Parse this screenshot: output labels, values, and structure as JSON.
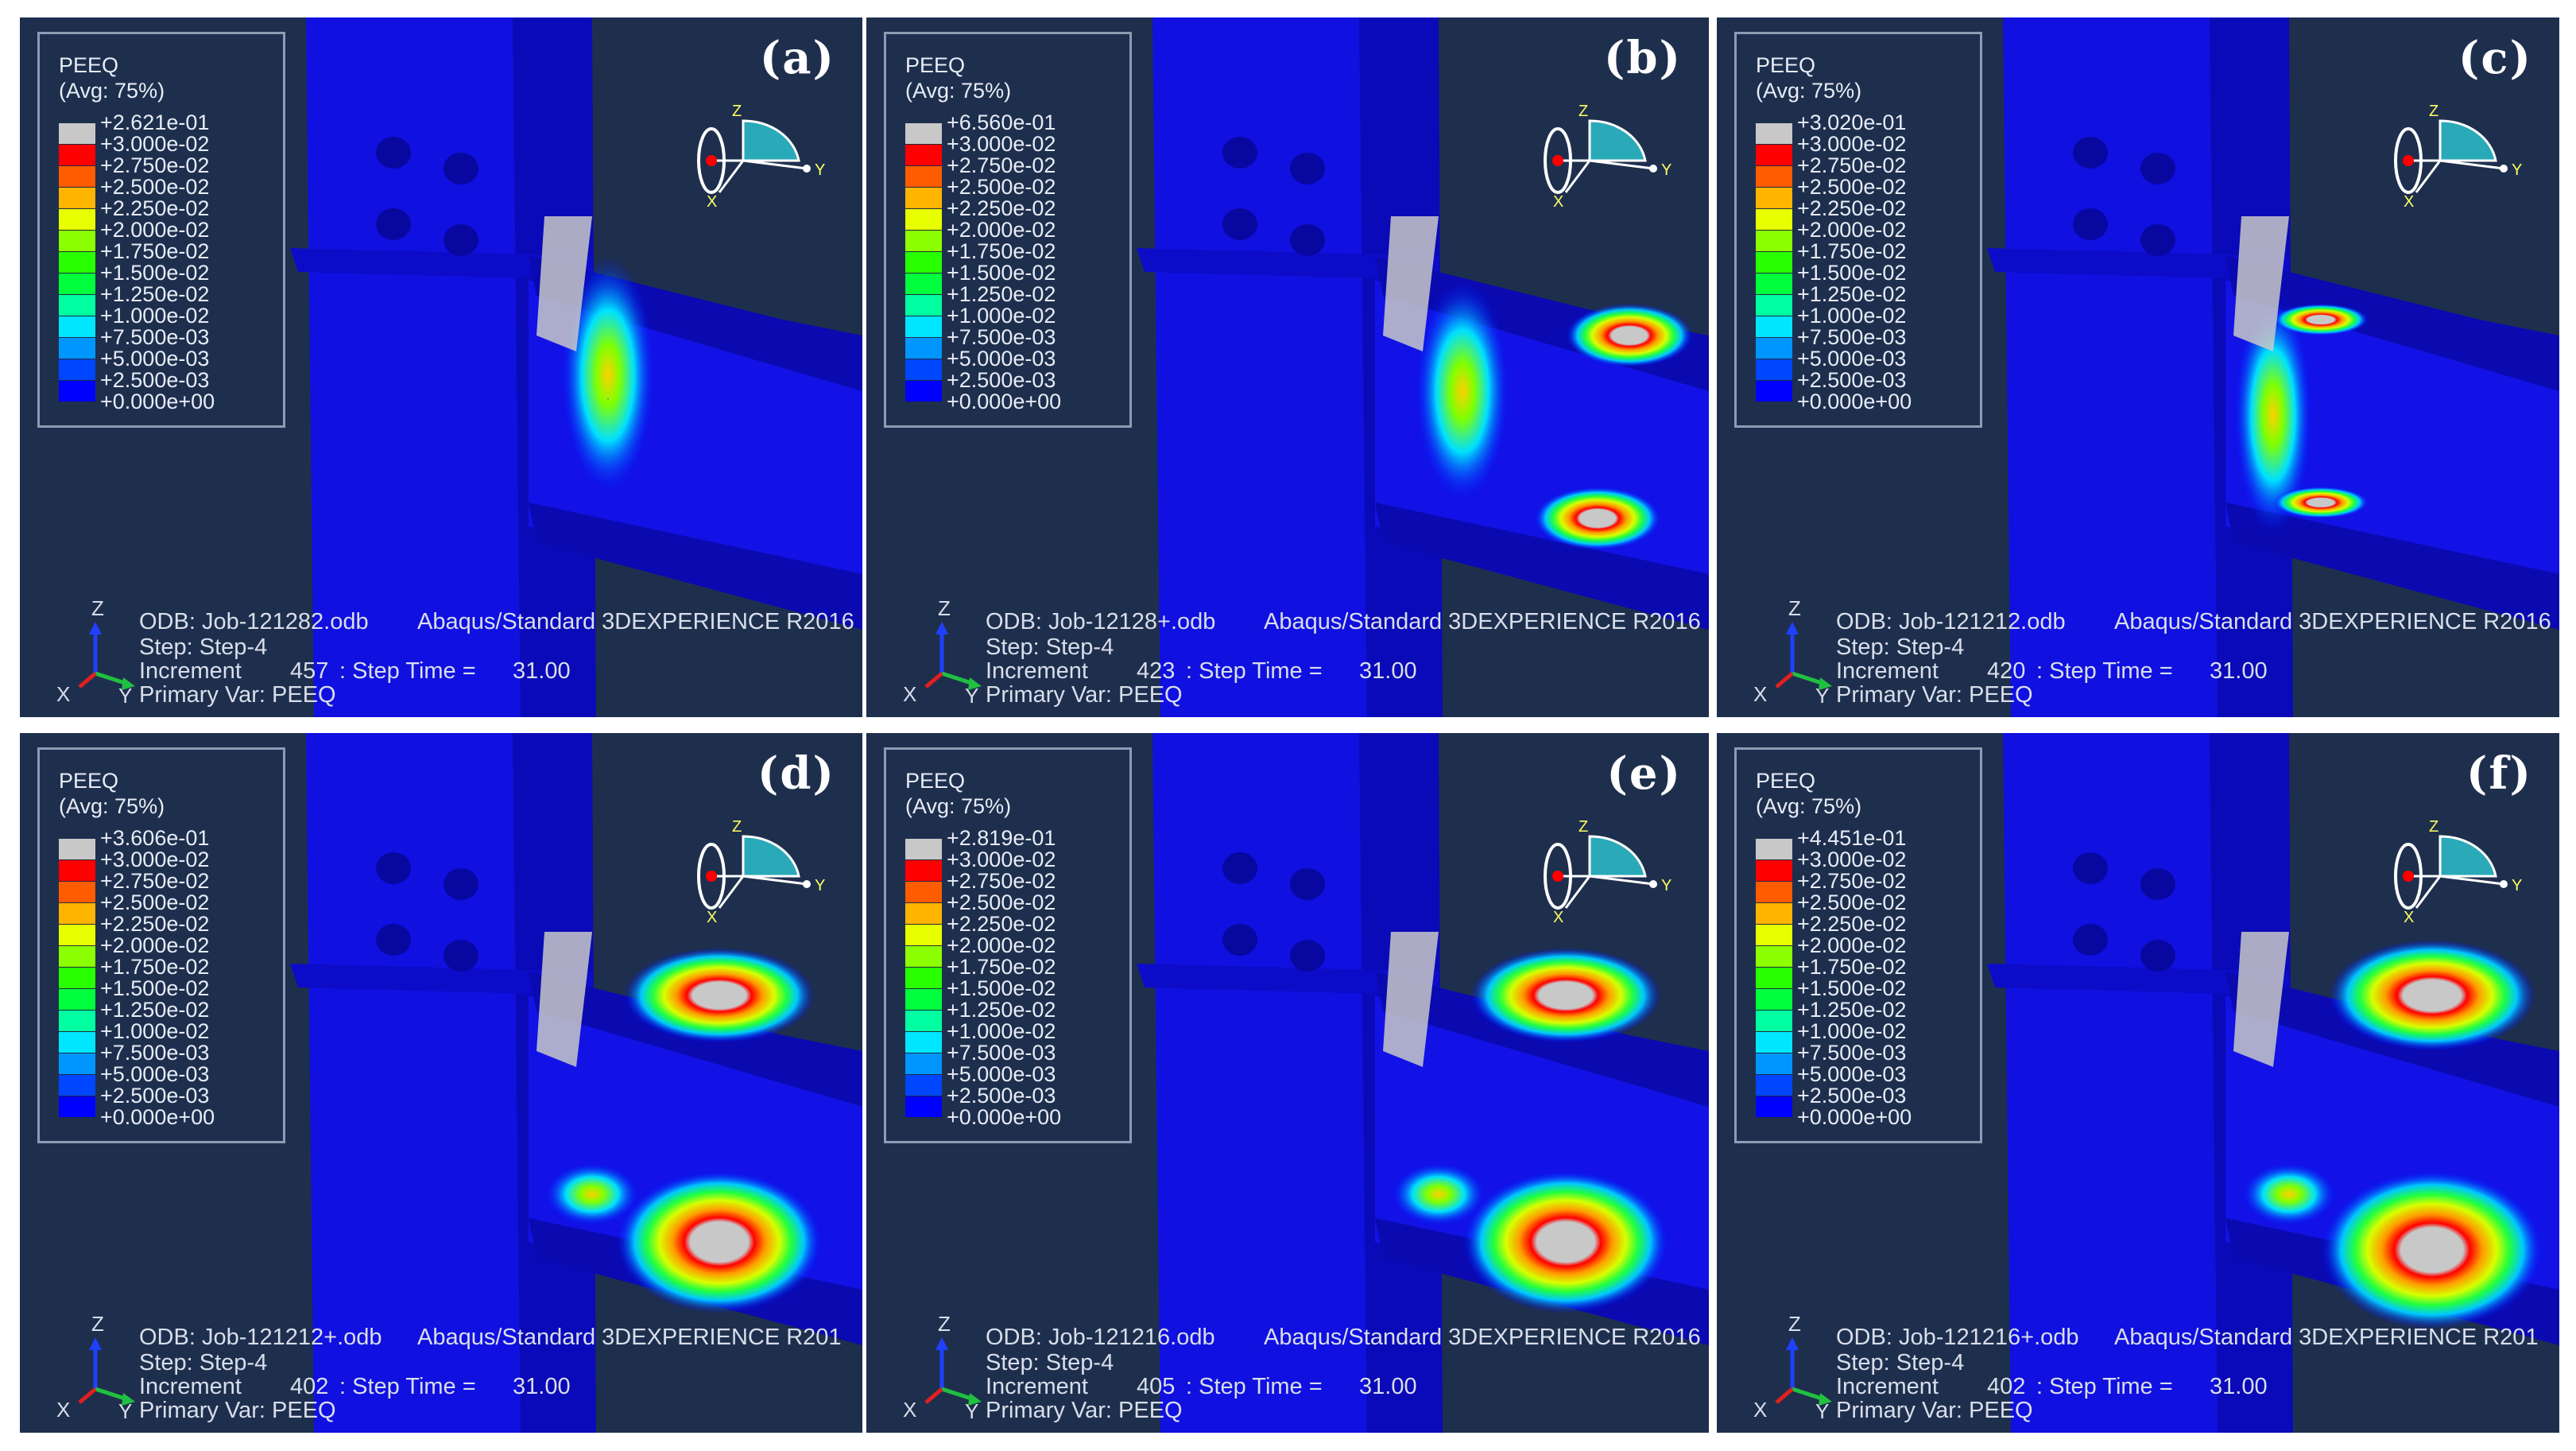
{
  "legend_colors": [
    "#c8c8c8",
    "#ff0000",
    "#ff5c00",
    "#ffb400",
    "#e8ff00",
    "#8cff00",
    "#28ff00",
    "#00ff3c",
    "#00ffa0",
    "#00e6ff",
    "#0096ff",
    "#0046ff",
    "#0000ff"
  ],
  "panels": [
    {
      "tag": "(a)",
      "legend_title": "PEEQ",
      "legend_avg": "(Avg: 75%)",
      "legend_values": [
        "+2.621e-01",
        "+3.000e-02",
        "+2.750e-02",
        "+2.500e-02",
        "+2.250e-02",
        "+2.000e-02",
        "+1.750e-02",
        "+1.500e-02",
        "+1.250e-02",
        "+1.000e-02",
        "+7.500e-03",
        "+5.000e-03",
        "+2.500e-03",
        "+0.000e+00"
      ],
      "odb": "ODB: Job-121282.odb",
      "solver": "Abaqus/Standard 3DEXPERIENCE R2016",
      "step": "Step: Step-4",
      "increment": "Increment",
      "increment_value": "457",
      "step_time": ": Step Time =",
      "step_time_value": "31.00",
      "primary_var": "Primary Var: PEEQ",
      "triad": {
        "z": "Z",
        "x": "X",
        "y": "Y"
      },
      "view_cube": {
        "z": "Z",
        "x": "X",
        "y": "Y"
      }
    },
    {
      "tag": "(b)",
      "legend_title": "PEEQ",
      "legend_avg": "(Avg: 75%)",
      "legend_values": [
        "+6.560e-01",
        "+3.000e-02",
        "+2.750e-02",
        "+2.500e-02",
        "+2.250e-02",
        "+2.000e-02",
        "+1.750e-02",
        "+1.500e-02",
        "+1.250e-02",
        "+1.000e-02",
        "+7.500e-03",
        "+5.000e-03",
        "+2.500e-03",
        "+0.000e+00"
      ],
      "odb": "ODB: Job-12128+.odb",
      "solver": "Abaqus/Standard 3DEXPERIENCE R2016",
      "step": "Step: Step-4",
      "increment": "Increment",
      "increment_value": "423",
      "step_time": ": Step Time =",
      "step_time_value": "31.00",
      "primary_var": "Primary Var: PEEQ",
      "triad": {
        "z": "Z",
        "x": "X",
        "y": "Y"
      },
      "view_cube": {
        "z": "Z",
        "x": "X",
        "y": "Y"
      }
    },
    {
      "tag": "(c)",
      "legend_title": "PEEQ",
      "legend_avg": "(Avg: 75%)",
      "legend_values": [
        "+3.020e-01",
        "+3.000e-02",
        "+2.750e-02",
        "+2.500e-02",
        "+2.250e-02",
        "+2.000e-02",
        "+1.750e-02",
        "+1.500e-02",
        "+1.250e-02",
        "+1.000e-02",
        "+7.500e-03",
        "+5.000e-03",
        "+2.500e-03",
        "+0.000e+00"
      ],
      "odb": "ODB: Job-121212.odb",
      "solver": "Abaqus/Standard 3DEXPERIENCE R2016",
      "step": "Step: Step-4",
      "increment": "Increment",
      "increment_value": "420",
      "step_time": ": Step Time =",
      "step_time_value": "31.00",
      "primary_var": "Primary Var: PEEQ",
      "triad": {
        "z": "Z",
        "x": "X",
        "y": "Y"
      },
      "view_cube": {
        "z": "Z",
        "x": "X",
        "y": "Y"
      }
    },
    {
      "tag": "(d)",
      "legend_title": "PEEQ",
      "legend_avg": "(Avg: 75%)",
      "legend_values": [
        "+3.606e-01",
        "+3.000e-02",
        "+2.750e-02",
        "+2.500e-02",
        "+2.250e-02",
        "+2.000e-02",
        "+1.750e-02",
        "+1.500e-02",
        "+1.250e-02",
        "+1.000e-02",
        "+7.500e-03",
        "+5.000e-03",
        "+2.500e-03",
        "+0.000e+00"
      ],
      "odb": "ODB: Job-121212+.odb",
      "solver": "Abaqus/Standard 3DEXPERIENCE R201",
      "step": "Step: Step-4",
      "increment": "Increment",
      "increment_value": "402",
      "step_time": ": Step Time =",
      "step_time_value": "31.00",
      "primary_var": "Primary Var: PEEQ",
      "triad": {
        "z": "Z",
        "x": "X",
        "y": "Y"
      },
      "view_cube": {
        "z": "Z",
        "x": "X",
        "y": "Y"
      }
    },
    {
      "tag": "(e)",
      "legend_title": "PEEQ",
      "legend_avg": "(Avg: 75%)",
      "legend_values": [
        "+2.819e-01",
        "+3.000e-02",
        "+2.750e-02",
        "+2.500e-02",
        "+2.250e-02",
        "+2.000e-02",
        "+1.750e-02",
        "+1.500e-02",
        "+1.250e-02",
        "+1.000e-02",
        "+7.500e-03",
        "+5.000e-03",
        "+2.500e-03",
        "+0.000e+00"
      ],
      "odb": "ODB: Job-121216.odb",
      "solver": "Abaqus/Standard 3DEXPERIENCE R2016",
      "step": "Step: Step-4",
      "increment": "Increment",
      "increment_value": "405",
      "step_time": ": Step Time =",
      "step_time_value": "31.00",
      "primary_var": "Primary Var: PEEQ",
      "triad": {
        "z": "Z",
        "x": "X",
        "y": "Y"
      },
      "view_cube": {
        "z": "Z",
        "x": "X",
        "y": "Y"
      }
    },
    {
      "tag": "(f)",
      "legend_title": "PEEQ",
      "legend_avg": "(Avg: 75%)",
      "legend_values": [
        "+4.451e-01",
        "+3.000e-02",
        "+2.750e-02",
        "+2.500e-02",
        "+2.250e-02",
        "+2.000e-02",
        "+1.750e-02",
        "+1.500e-02",
        "+1.250e-02",
        "+1.000e-02",
        "+7.500e-03",
        "+5.000e-03",
        "+2.500e-03",
        "+0.000e+00"
      ],
      "odb": "ODB: Job-121216+.odb",
      "solver": "Abaqus/Standard 3DEXPERIENCE R201",
      "step": "Step: Step-4",
      "increment": "Increment",
      "increment_value": "402",
      "step_time": ": Step Time =",
      "step_time_value": "31.00",
      "primary_var": "Primary Var: PEEQ",
      "triad": {
        "z": "Z",
        "x": "X",
        "y": "Y"
      },
      "view_cube": {
        "z": "Z",
        "x": "X",
        "y": "Y"
      }
    }
  ]
}
